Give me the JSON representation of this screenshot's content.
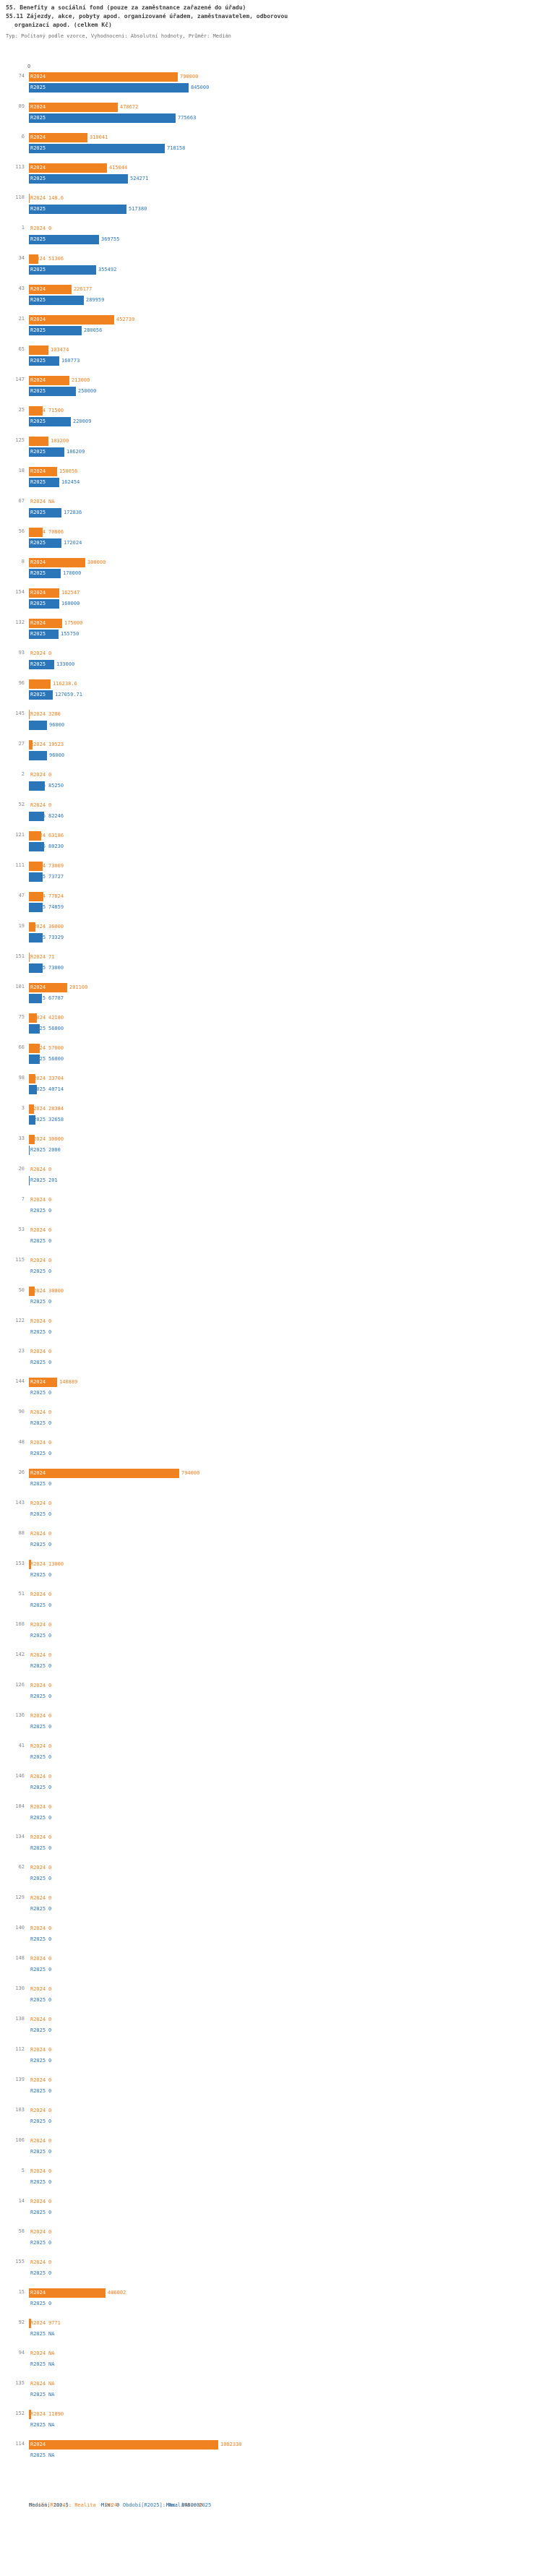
{
  "header": {
    "title_line1": "55. Benefity a sociální fond (pouze za zaměstnance zařazené do úřadu)",
    "title_line2": "55.11 Zájezdy, akce, pobyty apod. organizované úřadem, zaměstnavatelem, odborovou",
    "title_line3": "organizací apod. (celkem Kč)",
    "subtitle": "Typ: Počítaný podle vzorce, Vyhodnocení: Absolutní hodnoty, Průměr: Medián"
  },
  "axis": {
    "zero_label": "0"
  },
  "series": {
    "r2024": {
      "name": "R2024",
      "color": "#f08220",
      "legend": "Období[R2024]: Realita - 2024",
      "median": "Medián: 71",
      "min": "Min: 0",
      "max": "Max: 1002330"
    },
    "r2025": {
      "name": "R2025",
      "color": "#2b76b9",
      "legend": "Období[R2025]: Realita - 2025",
      "median": "Medián: 100.5",
      "min": "Min: 0",
      "max": "Max: 845000"
    }
  },
  "chart_data": {
    "type": "bar",
    "orientation": "horizontal",
    "unit": "Kč",
    "xlim": [
      0,
      1002330
    ],
    "legend_position": "bottom",
    "grid": false,
    "rows": [
      {
        "id": "74",
        "r2024": {
          "label": "790000",
          "value": 790000
        },
        "r2025": {
          "label": "845000",
          "value": 845000
        }
      },
      {
        "id": "89",
        "r2024": {
          "label": "470672",
          "value": 470672
        },
        "r2025": {
          "label": "775663",
          "value": 775663
        }
      },
      {
        "id": "6",
        "r2024": {
          "label": "310041",
          "value": 310041
        },
        "r2025": {
          "label": "718158",
          "value": 718158
        }
      },
      {
        "id": "113",
        "r2024": {
          "label": "415044",
          "value": 415044
        },
        "r2025": {
          "label": "524271",
          "value": 524271
        }
      },
      {
        "id": "118",
        "r2024": {
          "label": "148.6",
          "value": 148.6
        },
        "r2025": {
          "label": "517380",
          "value": 517380
        }
      },
      {
        "id": "1",
        "r2024": {
          "label": "0",
          "value": 0
        },
        "r2025": {
          "label": "369755",
          "value": 369755
        }
      },
      {
        "id": "34",
        "r2024": {
          "label": "51306",
          "value": 51306
        },
        "r2025": {
          "label": "355492",
          "value": 355492
        }
      },
      {
        "id": "43",
        "r2024": {
          "label": "226177",
          "value": 226177
        },
        "r2025": {
          "label": "289959",
          "value": 289959
        }
      },
      {
        "id": "21",
        "r2024": {
          "label": "452739",
          "value": 452739
        },
        "r2025": {
          "label": "280056",
          "value": 280056
        }
      },
      {
        "id": "65",
        "r2024": {
          "label": "103474",
          "value": 103474
        },
        "r2025": {
          "label": "160773",
          "value": 160773
        }
      },
      {
        "id": "147",
        "r2024": {
          "label": "213000",
          "value": 213000
        },
        "r2025": {
          "label": "250000",
          "value": 250000
        }
      },
      {
        "id": "25",
        "r2024": {
          "label": "71500",
          "value": 71500
        },
        "r2025": {
          "label": "220009",
          "value": 220009
        }
      },
      {
        "id": "125",
        "r2024": {
          "label": "103200",
          "value": 103200
        },
        "r2025": {
          "label": "186209",
          "value": 186209
        }
      },
      {
        "id": "18",
        "r2024": {
          "label": "150056",
          "value": 150056
        },
        "r2025": {
          "label": "162454",
          "value": 162454
        }
      },
      {
        "id": "67",
        "r2024": {
          "label": "NA",
          "value": null
        },
        "r2025": {
          "label": "172836",
          "value": 172836
        }
      },
      {
        "id": "56",
        "r2024": {
          "label": "70806",
          "value": 70806
        },
        "r2025": {
          "label": "172024",
          "value": 172024
        }
      },
      {
        "id": "8",
        "r2024": {
          "label": "300000",
          "value": 300000
        },
        "r2025": {
          "label": "170000",
          "value": 170000
        }
      },
      {
        "id": "154",
        "r2024": {
          "label": "162547",
          "value": 162547
        },
        "r2025": {
          "label": "160000",
          "value": 160000
        }
      },
      {
        "id": "132",
        "r2024": {
          "label": "175000",
          "value": 175000
        },
        "r2025": {
          "label": "155750",
          "value": 155750
        }
      },
      {
        "id": "93",
        "r2024": {
          "label": "0",
          "value": 0
        },
        "r2025": {
          "label": "133000",
          "value": 133000
        }
      },
      {
        "id": "96",
        "r2024": {
          "label": "116238.6",
          "value": 116238.6
        },
        "r2025": {
          "label": "127059.71",
          "value": 127059.71
        }
      },
      {
        "id": "145",
        "r2024": {
          "label": "3200",
          "value": 3200
        },
        "r2025": {
          "label": "96000",
          "value": 96000
        }
      },
      {
        "id": "27",
        "r2024": {
          "label": "19523",
          "value": 19523
        },
        "r2025": {
          "label": "96000",
          "value": 96000
        }
      },
      {
        "id": "2",
        "r2024": {
          "label": "0",
          "value": 0
        },
        "r2025": {
          "label": "85250",
          "value": 85250
        }
      },
      {
        "id": "52",
        "r2024": {
          "label": "0",
          "value": 0
        },
        "r2025": {
          "label": "82246",
          "value": 82246
        }
      },
      {
        "id": "121",
        "r2024": {
          "label": "63186",
          "value": 63186
        },
        "r2025": {
          "label": "80230",
          "value": 80230
        }
      },
      {
        "id": "111",
        "r2024": {
          "label": "73069",
          "value": 73069
        },
        "r2025": {
          "label": "73727",
          "value": 73727
        }
      },
      {
        "id": "47",
        "r2024": {
          "label": "77824",
          "value": 77824
        },
        "r2025": {
          "label": "74059",
          "value": 74059
        }
      },
      {
        "id": "19",
        "r2024": {
          "label": "36000",
          "value": 36000
        },
        "r2025": {
          "label": "73329",
          "value": 73329
        }
      },
      {
        "id": "151",
        "r2024": {
          "label": "71",
          "value": 71
        },
        "r2025": {
          "label": "73000",
          "value": 73000
        }
      },
      {
        "id": "101",
        "r2024": {
          "label": "201100",
          "value": 201100
        },
        "r2025": {
          "label": "67787",
          "value": 67787
        }
      },
      {
        "id": "75",
        "r2024": {
          "label": "42180",
          "value": 42180
        },
        "r2025": {
          "label": "56000",
          "value": 56000
        }
      },
      {
        "id": "66",
        "r2024": {
          "label": "57000",
          "value": 57000
        },
        "r2025": {
          "label": "56000",
          "value": 56000
        }
      },
      {
        "id": "98",
        "r2024": {
          "label": "33704",
          "value": 33704
        },
        "r2025": {
          "label": "40714",
          "value": 40714
        }
      },
      {
        "id": "3",
        "r2024": {
          "label": "28384",
          "value": 28384
        },
        "r2025": {
          "label": "32658",
          "value": 32658
        }
      },
      {
        "id": "33",
        "r2024": {
          "label": "30000",
          "value": 30000
        },
        "r2025": {
          "label": "2000",
          "value": 2000
        }
      },
      {
        "id": "20",
        "r2024": {
          "label": "0",
          "value": 0
        },
        "r2025": {
          "label": "201",
          "value": 201
        }
      },
      {
        "id": "7",
        "r2024": {
          "label": "0",
          "value": 0
        },
        "r2025": {
          "label": "0",
          "value": 0
        }
      },
      {
        "id": "53",
        "r2024": {
          "label": "0",
          "value": 0
        },
        "r2025": {
          "label": "0",
          "value": 0
        }
      },
      {
        "id": "115",
        "r2024": {
          "label": "0",
          "value": 0
        },
        "r2025": {
          "label": "0",
          "value": 0
        }
      },
      {
        "id": "50",
        "r2024": {
          "label": "30000",
          "value": 30000
        },
        "r2025": {
          "label": "0",
          "value": 0
        }
      },
      {
        "id": "122",
        "r2024": {
          "label": "0",
          "value": 0
        },
        "r2025": {
          "label": "0",
          "value": 0
        }
      },
      {
        "id": "23",
        "r2024": {
          "label": "0",
          "value": 0
        },
        "r2025": {
          "label": "0",
          "value": 0
        }
      },
      {
        "id": "144",
        "r2024": {
          "label": "148889",
          "value": 148889
        },
        "r2025": {
          "label": "0",
          "value": 0
        }
      },
      {
        "id": "90",
        "r2024": {
          "label": "0",
          "value": 0
        },
        "r2025": {
          "label": "0",
          "value": 0
        }
      },
      {
        "id": "48",
        "r2024": {
          "label": "0",
          "value": 0
        },
        "r2025": {
          "label": "0",
          "value": 0
        }
      },
      {
        "id": "26",
        "r2024": {
          "label": "794000",
          "value": 794000
        },
        "r2025": {
          "label": "0",
          "value": 0
        }
      },
      {
        "id": "143",
        "r2024": {
          "label": "0",
          "value": 0
        },
        "r2025": {
          "label": "0",
          "value": 0
        }
      },
      {
        "id": "88",
        "r2024": {
          "label": "0",
          "value": 0
        },
        "r2025": {
          "label": "0",
          "value": 0
        }
      },
      {
        "id": "153",
        "r2024": {
          "label": "13000",
          "value": 13000
        },
        "r2025": {
          "label": "0",
          "value": 0
        }
      },
      {
        "id": "51",
        "r2024": {
          "label": "0",
          "value": 0
        },
        "r2025": {
          "label": "0",
          "value": 0
        }
      },
      {
        "id": "108",
        "r2024": {
          "label": "0",
          "value": 0
        },
        "r2025": {
          "label": "0",
          "value": 0
        }
      },
      {
        "id": "142",
        "r2024": {
          "label": "0",
          "value": 0
        },
        "r2025": {
          "label": "0",
          "value": 0
        }
      },
      {
        "id": "126",
        "r2024": {
          "label": "0",
          "value": 0
        },
        "r2025": {
          "label": "0",
          "value": 0
        }
      },
      {
        "id": "136",
        "r2024": {
          "label": "0",
          "value": 0
        },
        "r2025": {
          "label": "0",
          "value": 0
        }
      },
      {
        "id": "41",
        "r2024": {
          "label": "0",
          "value": 0
        },
        "r2025": {
          "label": "0",
          "value": 0
        }
      },
      {
        "id": "146",
        "r2024": {
          "label": "0",
          "value": 0
        },
        "r2025": {
          "label": "0",
          "value": 0
        }
      },
      {
        "id": "104",
        "r2024": {
          "label": "0",
          "value": 0
        },
        "r2025": {
          "label": "0",
          "value": 0
        }
      },
      {
        "id": "134",
        "r2024": {
          "label": "0",
          "value": 0
        },
        "r2025": {
          "label": "0",
          "value": 0
        }
      },
      {
        "id": "62",
        "r2024": {
          "label": "0",
          "value": 0
        },
        "r2025": {
          "label": "0",
          "value": 0
        }
      },
      {
        "id": "129",
        "r2024": {
          "label": "0",
          "value": 0
        },
        "r2025": {
          "label": "0",
          "value": 0
        }
      },
      {
        "id": "140",
        "r2024": {
          "label": "0",
          "value": 0
        },
        "r2025": {
          "label": "0",
          "value": 0
        }
      },
      {
        "id": "148",
        "r2024": {
          "label": "0",
          "value": 0
        },
        "r2025": {
          "label": "0",
          "value": 0
        }
      },
      {
        "id": "130",
        "r2024": {
          "label": "0",
          "value": 0
        },
        "r2025": {
          "label": "0",
          "value": 0
        }
      },
      {
        "id": "138",
        "r2024": {
          "label": "0",
          "value": 0
        },
        "r2025": {
          "label": "0",
          "value": 0
        }
      },
      {
        "id": "112",
        "r2024": {
          "label": "0",
          "value": 0
        },
        "r2025": {
          "label": "0",
          "value": 0
        }
      },
      {
        "id": "139",
        "r2024": {
          "label": "0",
          "value": 0
        },
        "r2025": {
          "label": "0",
          "value": 0
        }
      },
      {
        "id": "103",
        "r2024": {
          "label": "0",
          "value": 0
        },
        "r2025": {
          "label": "0",
          "value": 0
        }
      },
      {
        "id": "106",
        "r2024": {
          "label": "0",
          "value": 0
        },
        "r2025": {
          "label": "0",
          "value": 0
        }
      },
      {
        "id": "5",
        "r2024": {
          "label": "0",
          "value": 0
        },
        "r2025": {
          "label": "0",
          "value": 0
        }
      },
      {
        "id": "14",
        "r2024": {
          "label": "0",
          "value": 0
        },
        "r2025": {
          "label": "0",
          "value": 0
        }
      },
      {
        "id": "58",
        "r2024": {
          "label": "0",
          "value": 0
        },
        "r2025": {
          "label": "0",
          "value": 0
        }
      },
      {
        "id": "155",
        "r2024": {
          "label": "0",
          "value": 0
        },
        "r2025": {
          "label": "0",
          "value": 0
        }
      },
      {
        "id": "15",
        "r2024": {
          "label": "406002",
          "value": 406002
        },
        "r2025": {
          "label": "0",
          "value": 0
        }
      },
      {
        "id": "92",
        "r2024": {
          "label": "9771",
          "value": 9771
        },
        "r2025": {
          "label": "NA",
          "value": null
        }
      },
      {
        "id": "94",
        "r2024": {
          "label": "NA",
          "value": null
        },
        "r2025": {
          "label": "NA",
          "value": null
        }
      },
      {
        "id": "135",
        "r2024": {
          "label": "NA",
          "value": null
        },
        "r2025": {
          "label": "NA",
          "value": null
        }
      },
      {
        "id": "152",
        "r2024": {
          "label": "11090",
          "value": 11090
        },
        "r2025": {
          "label": "NA",
          "value": null
        }
      },
      {
        "id": "114",
        "r2024": {
          "label": "1002330",
          "value": 1002330
        },
        "r2025": {
          "label": "NA",
          "value": null
        }
      }
    ]
  }
}
